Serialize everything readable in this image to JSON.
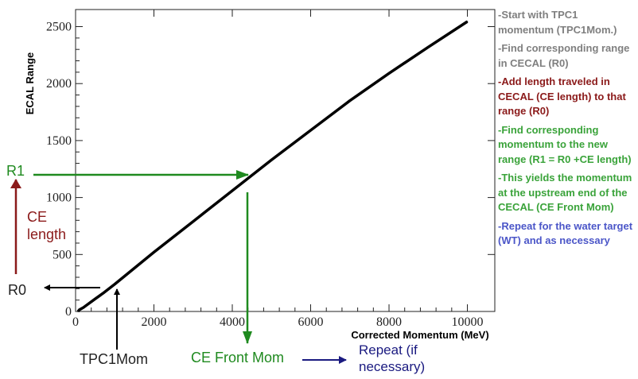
{
  "chart_data": {
    "type": "line",
    "xlabel": "Corrected Momentum (MeV)",
    "ylabel": "ECAL Range",
    "xlim": [
      0,
      10700
    ],
    "ylim": [
      0,
      2650
    ],
    "xticks": [
      0,
      2000,
      4000,
      6000,
      8000,
      10000
    ],
    "yticks": [
      0,
      500,
      1000,
      1500,
      2000,
      2500
    ],
    "grid": false,
    "series": [
      {
        "color": "#000000",
        "x": [
          60,
          100,
          200,
          300,
          500,
          700,
          1000,
          1500,
          2000,
          3000,
          4000,
          5000,
          6000,
          7000,
          8000,
          9000,
          10000
        ],
        "y": [
          0,
          15,
          35,
          60,
          110,
          160,
          240,
          380,
          520,
          790,
          1060,
          1330,
          1590,
          1850,
          2090,
          2320,
          2545
        ]
      }
    ]
  },
  "annotations": {
    "r1": "R1",
    "ce_length": "CE\nlength",
    "r0": "R0",
    "tpc1mom": "TPC1Mom",
    "ce_front_mom": "CE Front Mom",
    "repeat": "Repeat (if\nnecessary)"
  },
  "steps": [
    {
      "text": "-Start with TPC1 momentum (TPC1Mom.)",
      "color": "#7f7f7f"
    },
    {
      "text": "-Find corresponding range in CECAL (R0)",
      "color": "#7f7f7f"
    },
    {
      "text": "-Add length traveled in CECAL (CE length) to that range (R0)",
      "color": "#8b1a1a"
    },
    {
      "text": "-Find corresponding momentum to the new range (R1 = R0 +CE length)",
      "color": "#3aa33a"
    },
    {
      "text": "-This yields the momentum at the upstream end of the CECAL (CE Front Mom)",
      "color": "#3aa33a"
    },
    {
      "text": "-Repeat for the water target (WT) and as necessary",
      "color": "#4b56c8"
    }
  ],
  "colors": {
    "black": "#000000",
    "green": "#1f8a1f",
    "darkred": "#8b1a1a",
    "navy": "#1a1a80"
  }
}
